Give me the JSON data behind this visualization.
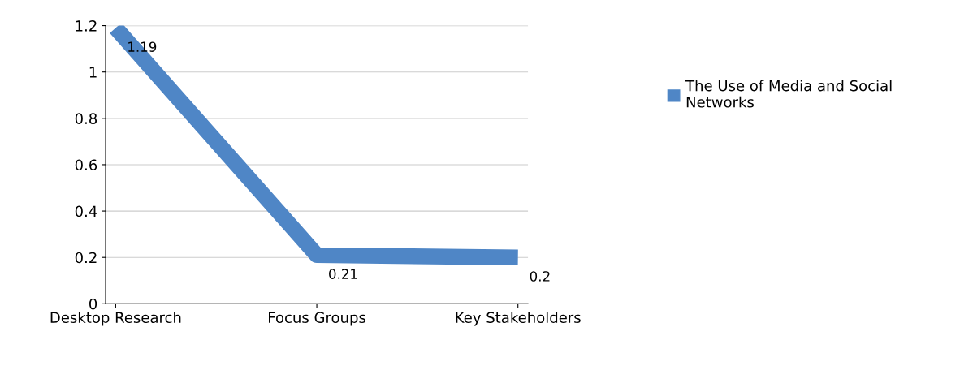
{
  "chart_data": {
    "type": "line",
    "categories": [
      "Desktop Research",
      "Focus Groups",
      "Key Stakeholders"
    ],
    "series": [
      {
        "name": "The Use of Media and Social Networks",
        "color": "#4f86c6",
        "values": [
          1.19,
          0.21,
          0.2
        ]
      }
    ],
    "ylim": [
      0,
      1.2
    ],
    "yticks": [
      0,
      0.2,
      0.4,
      0.6,
      0.8,
      1,
      1.2
    ],
    "grid": "y",
    "legend": "right",
    "data_labels": true,
    "marker": "none",
    "line_style": "solid"
  }
}
